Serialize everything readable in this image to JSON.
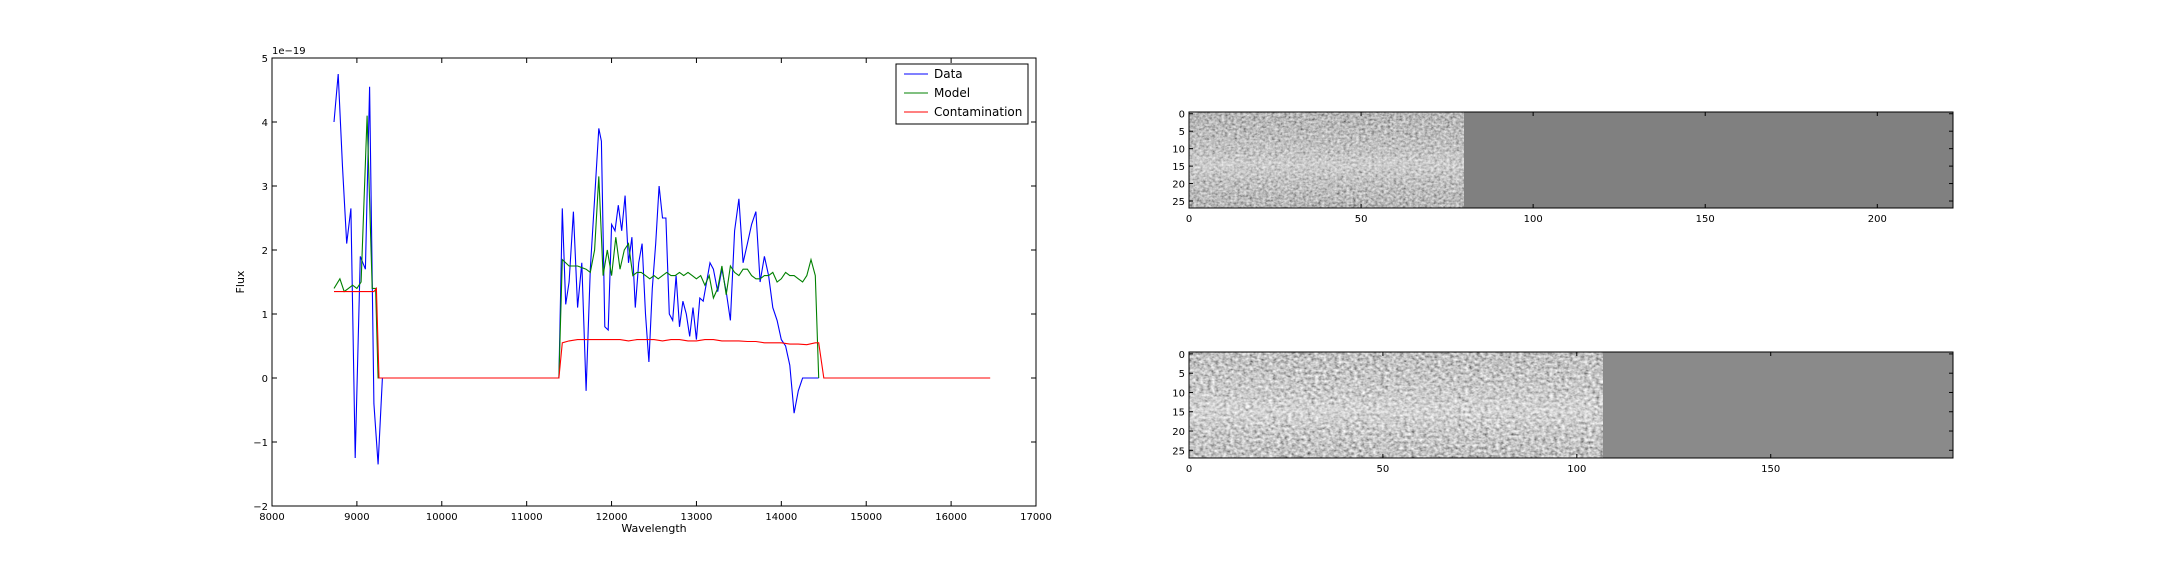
{
  "chart_data": [
    {
      "type": "line",
      "xlabel": "Wavelength",
      "ylabel": "Flux",
      "offset_text": "1e−19",
      "xlim": [
        8000,
        17000
      ],
      "ylim": [
        -2,
        5
      ],
      "xticks": [
        8000,
        9000,
        10000,
        11000,
        12000,
        13000,
        14000,
        15000,
        16000,
        17000
      ],
      "xtick_labels": [
        "8000",
        "9000",
        "10000",
        "11000",
        "12000",
        "13000",
        "14000",
        "15000",
        "16000",
        "17000"
      ],
      "yticks": [
        -2,
        -1,
        0,
        1,
        2,
        3,
        4,
        5
      ],
      "ytick_labels": [
        "−2",
        "−1",
        "0",
        "1",
        "2",
        "3",
        "4",
        "5"
      ],
      "grid": false,
      "legend_position": "top-right",
      "series": [
        {
          "name": "Data",
          "color": "#0000ff",
          "x": [
            8730,
            8780,
            8830,
            8880,
            8930,
            8980,
            9040,
            9100,
            9150,
            9200,
            9250,
            9300,
            11380,
            11420,
            11460,
            11500,
            11550,
            11600,
            11650,
            11700,
            11750,
            11800,
            11850,
            11880,
            11920,
            11960,
            12000,
            12040,
            12080,
            12120,
            12160,
            12200,
            12240,
            12280,
            12320,
            12360,
            12400,
            12440,
            12480,
            12520,
            12560,
            12600,
            12640,
            12680,
            12720,
            12760,
            12800,
            12840,
            12880,
            12920,
            12960,
            13000,
            13040,
            13080,
            13120,
            13160,
            13200,
            13250,
            13300,
            13350,
            13400,
            13450,
            13500,
            13550,
            13600,
            13650,
            13700,
            13750,
            13800,
            13850,
            13900,
            13950,
            14000,
            14050,
            14100,
            14150,
            14200,
            14250,
            14300,
            14350,
            14400,
            14440
          ],
          "values": [
            4.0,
            4.75,
            3.3,
            2.1,
            2.65,
            -1.25,
            1.9,
            1.7,
            4.55,
            -0.4,
            -1.35,
            0.0,
            0.0,
            2.65,
            1.15,
            1.5,
            2.6,
            1.1,
            1.8,
            -0.2,
            1.7,
            2.8,
            3.9,
            3.7,
            0.8,
            0.75,
            2.4,
            2.3,
            2.7,
            2.3,
            2.85,
            1.8,
            2.2,
            1.1,
            1.8,
            2.1,
            1.0,
            0.25,
            1.4,
            2.1,
            3.0,
            2.5,
            2.5,
            1.0,
            0.9,
            1.6,
            0.8,
            1.2,
            1.0,
            0.65,
            1.1,
            0.6,
            1.25,
            1.2,
            1.5,
            1.8,
            1.7,
            1.35,
            1.7,
            1.35,
            0.9,
            2.3,
            2.8,
            1.8,
            2.1,
            2.4,
            2.6,
            1.5,
            1.9,
            1.6,
            1.1,
            0.9,
            0.6,
            0.5,
            0.2,
            -0.55,
            -0.2,
            0.0,
            0.0,
            0.0,
            0.0,
            0.0
          ]
        },
        {
          "name": "Model",
          "color": "#008000",
          "x": [
            8730,
            8800,
            8850,
            8900,
            8950,
            9000,
            9050,
            9120,
            9180,
            9220,
            9250,
            11380,
            11420,
            11500,
            11600,
            11700,
            11750,
            11800,
            11850,
            11900,
            11950,
            12000,
            12050,
            12100,
            12150,
            12200,
            12250,
            12300,
            12350,
            12400,
            12450,
            12500,
            12550,
            12600,
            12650,
            12700,
            12750,
            12800,
            12850,
            12900,
            12950,
            13000,
            13050,
            13100,
            13150,
            13200,
            13250,
            13300,
            13350,
            13400,
            13450,
            13500,
            13550,
            13600,
            13650,
            13700,
            13750,
            13800,
            13850,
            13900,
            13950,
            14000,
            14050,
            14100,
            14150,
            14200,
            14250,
            14300,
            14350,
            14400,
            14440
          ],
          "values": [
            1.4,
            1.55,
            1.35,
            1.4,
            1.45,
            1.4,
            1.5,
            4.1,
            1.4,
            1.4,
            0.0,
            0.0,
            1.85,
            1.75,
            1.75,
            1.7,
            1.65,
            2.0,
            3.15,
            1.6,
            2.0,
            1.6,
            2.2,
            1.7,
            2.0,
            2.1,
            1.6,
            1.65,
            1.65,
            1.6,
            1.55,
            1.6,
            1.55,
            1.6,
            1.65,
            1.6,
            1.6,
            1.65,
            1.6,
            1.65,
            1.6,
            1.55,
            1.6,
            1.45,
            1.6,
            1.25,
            1.4,
            1.75,
            1.3,
            1.75,
            1.65,
            1.6,
            1.7,
            1.7,
            1.6,
            1.55,
            1.55,
            1.6,
            1.6,
            1.65,
            1.5,
            1.55,
            1.65,
            1.6,
            1.6,
            1.55,
            1.5,
            1.6,
            1.85,
            1.6,
            0.0
          ]
        },
        {
          "name": "Contamination",
          "color": "#ff0000",
          "x": [
            8730,
            8800,
            8900,
            9000,
            9100,
            9200,
            9230,
            9260,
            9300,
            10000,
            11000,
            11380,
            11420,
            11500,
            11600,
            11700,
            11800,
            11900,
            12000,
            12100,
            12200,
            12300,
            12400,
            12500,
            12600,
            12700,
            12800,
            12900,
            13000,
            13100,
            13200,
            13300,
            13400,
            13500,
            13600,
            13700,
            13800,
            13900,
            14000,
            14100,
            14200,
            14300,
            14400,
            14440,
            14500,
            15000,
            16000,
            16460
          ],
          "values": [
            1.35,
            1.35,
            1.35,
            1.35,
            1.35,
            1.35,
            1.4,
            0.0,
            0.0,
            0.0,
            0.0,
            0.0,
            0.55,
            0.58,
            0.6,
            0.6,
            0.6,
            0.6,
            0.6,
            0.6,
            0.58,
            0.6,
            0.6,
            0.6,
            0.58,
            0.6,
            0.6,
            0.58,
            0.58,
            0.6,
            0.6,
            0.58,
            0.58,
            0.58,
            0.57,
            0.57,
            0.55,
            0.55,
            0.55,
            0.53,
            0.53,
            0.52,
            0.55,
            0.55,
            0.0,
            0.0,
            0.0,
            0.0
          ]
        }
      ]
    },
    {
      "type": "heatmap",
      "colormap": "gray",
      "xlim": [
        0,
        222
      ],
      "ylim": [
        27,
        0
      ],
      "xticks": [
        0,
        50,
        100,
        150,
        200
      ],
      "xtick_labels": [
        "0",
        "50",
        "100",
        "150",
        "200"
      ],
      "yticks": [
        0,
        5,
        10,
        15,
        20,
        25
      ],
      "ytick_labels": [
        "0",
        "5",
        "10",
        "15",
        "20",
        "25"
      ],
      "data_extent_x": [
        0,
        80
      ]
    },
    {
      "type": "heatmap",
      "colormap": "gray",
      "xlim": [
        0,
        197
      ],
      "ylim": [
        27,
        0
      ],
      "xticks": [
        0,
        50,
        100,
        150
      ],
      "xtick_labels": [
        "0",
        "50",
        "100",
        "150"
      ],
      "yticks": [
        0,
        5,
        10,
        15,
        20,
        25
      ],
      "ytick_labels": [
        "0",
        "5",
        "10",
        "15",
        "20",
        "25"
      ],
      "data_extent_x": [
        0,
        107
      ]
    }
  ]
}
